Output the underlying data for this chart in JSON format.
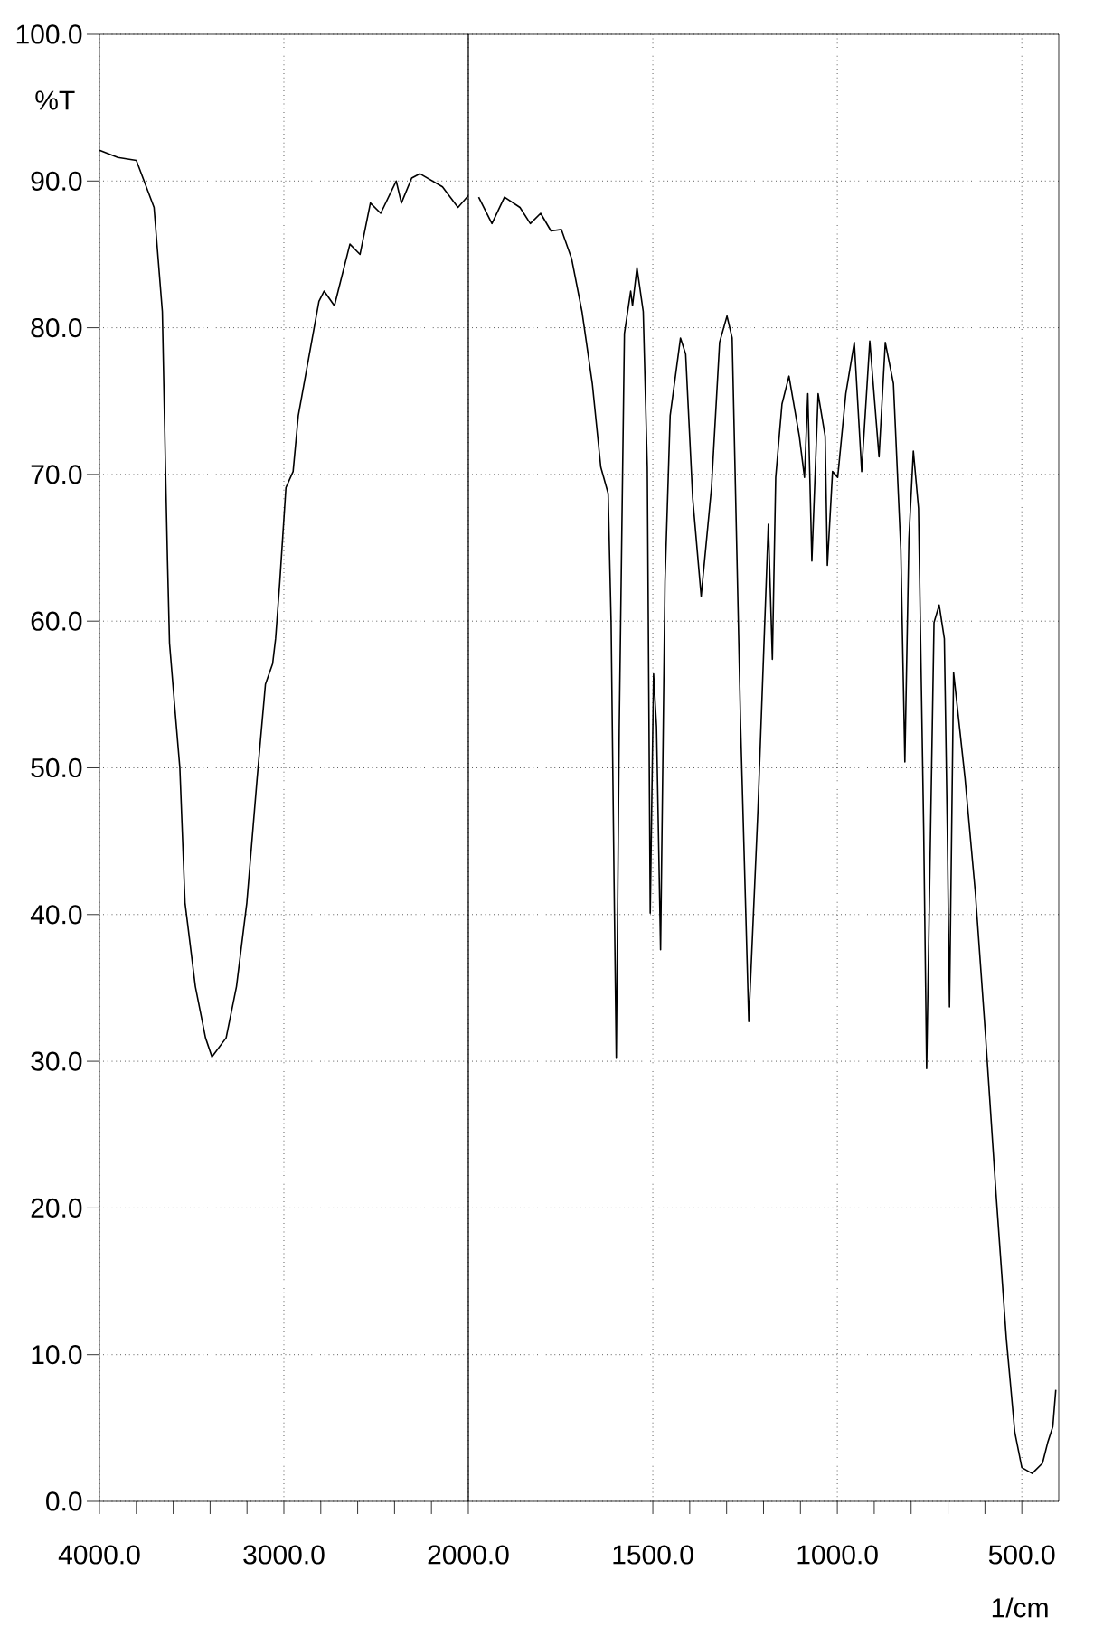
{
  "chart_data": [
    {
      "type": "line",
      "ylabel": "%T",
      "x": [
        4000,
        3900,
        3800,
        3704,
        3659,
        3642,
        3631,
        3620,
        3592,
        3564,
        3536,
        3480,
        3425,
        3390,
        3313,
        3257,
        3201,
        3145,
        3100,
        3061,
        3045,
        3022,
        2989,
        2950,
        2922,
        2866,
        2810,
        2782,
        2726,
        2642,
        2587,
        2531,
        2475,
        2391,
        2363,
        2307,
        2263,
        2140,
        2056,
        2000
      ],
      "series": [
        {
          "color": "#000000",
          "values": [
            92.1,
            91.6,
            91.4,
            88.2,
            81.1,
            70.5,
            64.1,
            58.5,
            54.2,
            50.0,
            40.8,
            35.1,
            31.6,
            30.3,
            31.6,
            35.1,
            40.8,
            49.3,
            55.7,
            57.1,
            58.8,
            62.7,
            69.1,
            70.2,
            74.0,
            77.9,
            81.8,
            82.5,
            81.5,
            85.7,
            85.0,
            88.5,
            87.8,
            90.0,
            88.5,
            90.2,
            90.5,
            89.6,
            88.2,
            89.0
          ]
        }
      ],
      "xlim": [
        4000,
        2000
      ],
      "xticks": [
        {
          "value": 4000,
          "label": "4000.0"
        },
        {
          "value": 3000,
          "label": "3000.0"
        },
        {
          "value": 2000,
          "label": "2000.0"
        }
      ],
      "ylim": [
        0,
        100
      ],
      "yticks": [
        {
          "value": 0,
          "label": "0.0"
        },
        {
          "value": 10,
          "label": "10.0"
        },
        {
          "value": 20,
          "label": "20.0"
        },
        {
          "value": 30,
          "label": "30.0"
        },
        {
          "value": 40,
          "label": "40.0"
        },
        {
          "value": 50,
          "label": "50.0"
        },
        {
          "value": 60,
          "label": "60.0"
        },
        {
          "value": 70,
          "label": "70.0"
        },
        {
          "value": 80,
          "label": "80.0"
        },
        {
          "value": 90,
          "label": "90.0"
        },
        {
          "value": 100,
          "label": "100.0"
        }
      ],
      "grid": true
    },
    {
      "type": "line",
      "xlabel": "1/cm",
      "x": [
        1972,
        1936,
        1902,
        1860,
        1832,
        1804,
        1776,
        1748,
        1720,
        1692,
        1664,
        1641,
        1621,
        1613,
        1605,
        1599,
        1591,
        1577,
        1560,
        1555,
        1543,
        1526,
        1515,
        1507,
        1498,
        1490,
        1479,
        1467,
        1453,
        1425,
        1411,
        1392,
        1369,
        1341,
        1319,
        1299,
        1285,
        1262,
        1240,
        1215,
        1187,
        1176,
        1167,
        1150,
        1131,
        1103,
        1089,
        1080,
        1069,
        1052,
        1033,
        1027,
        1013,
        999,
        977,
        954,
        934,
        912,
        887,
        870,
        848,
        828,
        817,
        806,
        794,
        780,
        766,
        758,
        738,
        724,
        710,
        702,
        696,
        685,
        654,
        626,
        598,
        570,
        542,
        519,
        500,
        472,
        444,
        430,
        416,
        408
      ],
      "series": [
        {
          "color": "#000000",
          "values": [
            88.9,
            87.1,
            88.9,
            88.2,
            87.1,
            87.8,
            86.6,
            86.7,
            84.7,
            81.1,
            76.2,
            70.5,
            68.7,
            59.9,
            42.2,
            30.2,
            52.7,
            79.6,
            82.5,
            81.5,
            84.1,
            81.1,
            70.5,
            40.1,
            56.4,
            52.8,
            37.6,
            62.7,
            74.0,
            79.3,
            78.2,
            68.4,
            61.7,
            69.1,
            79.0,
            80.8,
            79.3,
            52.8,
            32.7,
            47.2,
            66.6,
            57.4,
            69.8,
            74.8,
            76.7,
            72.6,
            69.8,
            75.5,
            64.1,
            75.5,
            72.6,
            63.8,
            70.2,
            69.8,
            75.5,
            79.0,
            70.2,
            79.1,
            71.2,
            79.0,
            76.2,
            64.9,
            50.4,
            65.6,
            71.6,
            67.7,
            45.8,
            29.5,
            59.9,
            61.1,
            58.8,
            45.8,
            33.7,
            56.5,
            49.3,
            41.5,
            31.6,
            21.0,
            11.1,
            4.7,
            2.3,
            1.9,
            2.6,
            4.0,
            5.1,
            7.6
          ]
        }
      ],
      "xlim": [
        2000,
        400
      ],
      "xticks": [
        {
          "value": 1500,
          "label": "1500.0"
        },
        {
          "value": 1000,
          "label": "1000.0"
        },
        {
          "value": 500,
          "label": "500.0"
        }
      ],
      "ylim": [
        0,
        100
      ],
      "yticks": [
        0,
        10,
        20,
        30,
        40,
        50,
        60,
        70,
        80,
        90,
        100
      ],
      "grid": true,
      "tick_labels": "x"
    }
  ]
}
